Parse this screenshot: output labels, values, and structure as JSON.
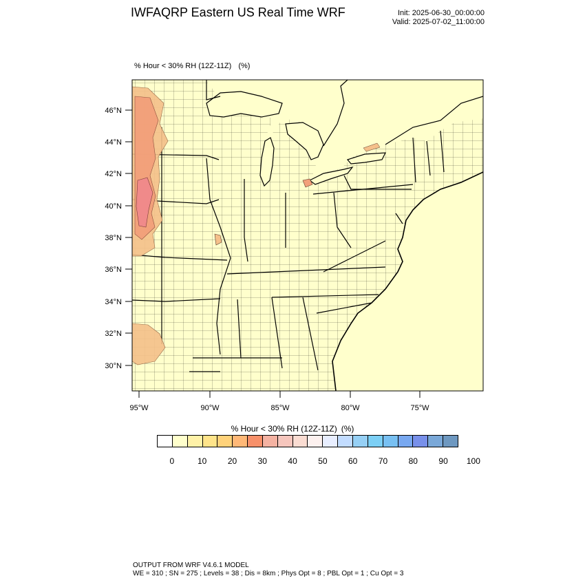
{
  "header": {
    "title": "IWFAQRP Eastern US Real Time WRF",
    "init": "Init: 2025-06-30_00:00:00",
    "valid": "Valid: 2025-07-02_11:00:00"
  },
  "field": {
    "name": "% Hour < 30% RH (12Z-11Z)",
    "unit": "(%)"
  },
  "map": {
    "lat_ticks": [
      "46°N",
      "44°N",
      "42°N",
      "40°N",
      "38°N",
      "36°N",
      "34°N",
      "32°N",
      "30°N"
    ],
    "lon_ticks": [
      "95°W",
      "90°W",
      "85°W",
      "80°W",
      "75°W"
    ],
    "colors": {
      "background": "#ffffcc",
      "high_values": "#f2a07a",
      "mid_values": "#f5c08a",
      "peak_values": "#f08a8a"
    }
  },
  "colorbar": {
    "title": "% Hour < 30% RH (12Z-11Z)",
    "unit": "(%)",
    "labels": [
      "0",
      "10",
      "20",
      "30",
      "40",
      "50",
      "60",
      "70",
      "80",
      "90",
      "100"
    ],
    "colors": [
      "#ffffff",
      "#ffffcc",
      "#fff2a8",
      "#ffe48a",
      "#ffd27a",
      "#ffb877",
      "#f7906a",
      "#f4b2a2",
      "#f6c6bd",
      "#fadcd2",
      "#fdf1ef",
      "#e8eeff",
      "#c2dcff",
      "#96d0f5",
      "#7ccff5",
      "#78c0f2",
      "#78a8f0",
      "#7890ea",
      "#7aa8d8",
      "#6e98c0"
    ]
  },
  "footer": {
    "line1": "OUTPUT FROM WRF V4.6.1 MODEL",
    "line2": "WE = 310 ; SN = 275 ; Levels = 38 ; Dis = 8km ; Phys Opt = 8 ; PBL Opt = 1 ; Cu Opt = 3"
  }
}
